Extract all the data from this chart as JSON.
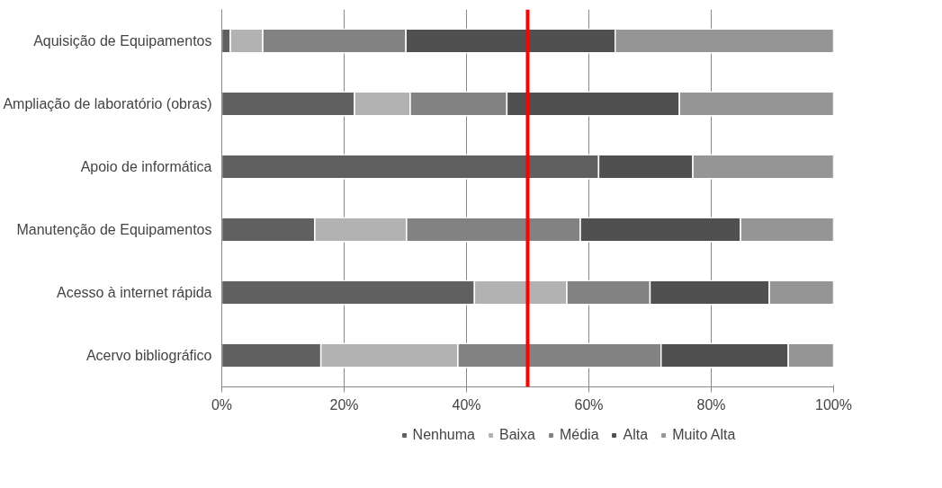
{
  "chart_data": {
    "type": "bar",
    "orientation": "horizontal",
    "stacked": true,
    "categories": [
      "Aquisição de Equipamentos",
      "Ampliação de laboratório (obras)",
      "Apoio de informática",
      "Manutenção de Equipamentos",
      "Acesso à internet rápida",
      "Acervo bibliográfico"
    ],
    "series": [
      {
        "name": "Nenhuma",
        "color": "#606060",
        "values": [
          1.4,
          21.7,
          61.6,
          15.2,
          41.3,
          16.2
        ]
      },
      {
        "name": "Baixa",
        "color": "#b2b2b2",
        "values": [
          5.3,
          9.1,
          0,
          15.0,
          15.1,
          22.4
        ]
      },
      {
        "name": "Média",
        "color": "#828282",
        "values": [
          23.4,
          15.8,
          0,
          28.4,
          13.6,
          33.2
        ]
      },
      {
        "name": "Alta",
        "color": "#505050",
        "values": [
          34.2,
          28.2,
          15.4,
          26.2,
          19.5,
          20.8
        ]
      },
      {
        "name": "Muito Alta",
        "color": "#959595",
        "values": [
          35.7,
          25.2,
          23.0,
          15.2,
          10.5,
          7.4
        ]
      }
    ],
    "xlim": [
      0,
      100
    ],
    "xticks": [
      {
        "value": 0,
        "label": "0%"
      },
      {
        "value": 20,
        "label": "20%"
      },
      {
        "value": 40,
        "label": "40%"
      },
      {
        "value": 60,
        "label": "60%"
      },
      {
        "value": 80,
        "label": "80%"
      },
      {
        "value": 100,
        "label": "100%"
      }
    ],
    "ref_lines": [
      {
        "axis": "x",
        "value": 50,
        "color": "#ff0000"
      }
    ],
    "grid": "x",
    "legend": "bottom"
  }
}
